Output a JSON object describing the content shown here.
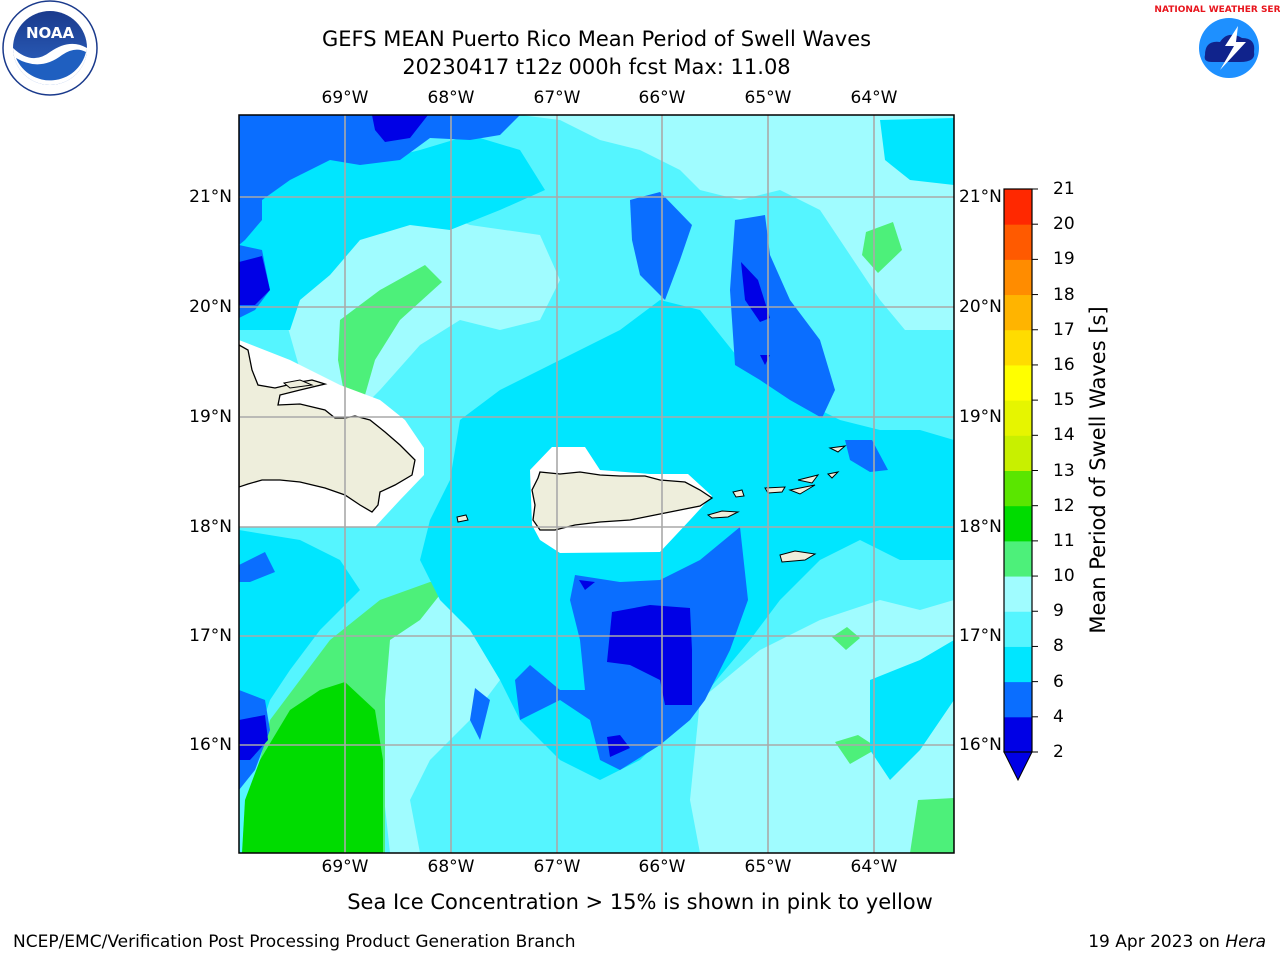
{
  "title_line1": "GEFS MEAN Puerto Rico Mean Period of Swell Waves",
  "title_line2": "20230417 t12z 000h fcst   Max: 11.08",
  "lon_labels": [
    "69°W",
    "68°W",
    "67°W",
    "66°W",
    "65°W",
    "64°W"
  ],
  "lat_labels": [
    "21°N",
    "20°N",
    "19°N",
    "18°N",
    "17°N",
    "16°N"
  ],
  "colorbar": {
    "label": "Mean Period of Swell Waves [s]",
    "ticks": [
      "2",
      "4",
      "6",
      "8",
      "9",
      "10",
      "11",
      "12",
      "13",
      "14",
      "15",
      "16",
      "17",
      "18",
      "19",
      "20",
      "21"
    ],
    "colors": [
      "#0000e6",
      "#0a6eff",
      "#00e6ff",
      "#55f5ff",
      "#a0fcff",
      "#4df07a",
      "#00dc00",
      "#5ae600",
      "#c8f000",
      "#e6f500",
      "#ffff00",
      "#ffdc00",
      "#ffb400",
      "#ff8c00",
      "#ff5a00",
      "#ff2800"
    ],
    "extend_color": "#0000e6"
  },
  "logos": {
    "left": "NOAA",
    "right": "NATIONAL WEATHER SERVICE"
  },
  "footer": {
    "note": "Sea Ice Concentration > 15% is shown in pink to yellow",
    "left": "NCEP/EMC/Verification Post Processing Product Generation Branch",
    "right_prefix": "19 Apr 2023 on ",
    "right_host": "Hera"
  }
}
